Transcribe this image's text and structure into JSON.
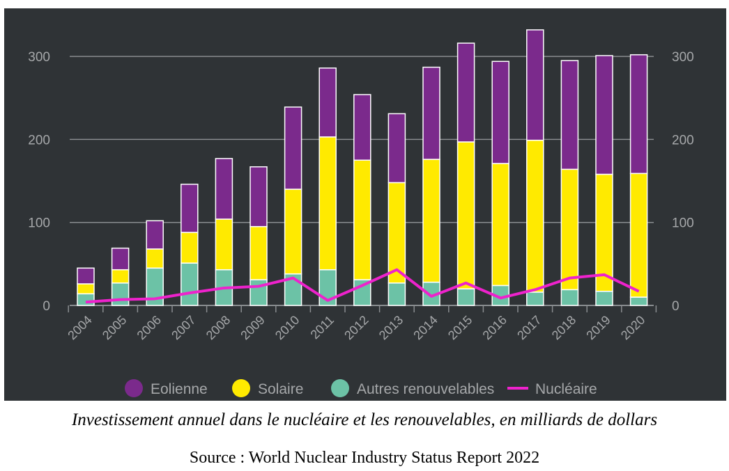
{
  "chart_data": {
    "type": "bar",
    "stacked": true,
    "categories": [
      "2004",
      "2005",
      "2006",
      "2007",
      "2008",
      "2009",
      "2010",
      "2011",
      "2012",
      "2013",
      "2014",
      "2015",
      "2016",
      "2017",
      "2018",
      "2019",
      "2020"
    ],
    "series": [
      {
        "name": "Autres renouvelables",
        "type": "bar",
        "color": "#6cc2a6",
        "values": [
          14,
          27,
          45,
          51,
          43,
          31,
          38,
          43,
          31,
          27,
          28,
          20,
          24,
          16,
          19,
          17,
          10
        ]
      },
      {
        "name": "Solaire",
        "type": "bar",
        "color": "#ffea00",
        "values": [
          12,
          16,
          23,
          37,
          61,
          64,
          102,
          160,
          144,
          121,
          148,
          177,
          147,
          183,
          145,
          141,
          149
        ]
      },
      {
        "name": "Eolienne",
        "type": "bar",
        "color": "#7b2a8c",
        "values": [
          19,
          26,
          34,
          58,
          73,
          72,
          99,
          83,
          79,
          83,
          111,
          119,
          123,
          133,
          131,
          143,
          143
        ]
      },
      {
        "name": "Nucléaire",
        "type": "line",
        "color": "#ee22cc",
        "values": [
          4,
          7,
          8,
          15,
          21,
          23,
          33,
          6,
          24,
          43,
          11,
          27,
          9,
          19,
          33,
          37,
          17
        ]
      }
    ],
    "ylim": [
      0,
      340
    ],
    "yticks": [
      0,
      100,
      200,
      300
    ],
    "grid": true,
    "legend_position": "bottom",
    "caption": "Investissement annuel dans le nucléaire et les renouvelables, en milliards de dollars",
    "source": "Source : World Nuclear Industry Status Report 2022"
  }
}
